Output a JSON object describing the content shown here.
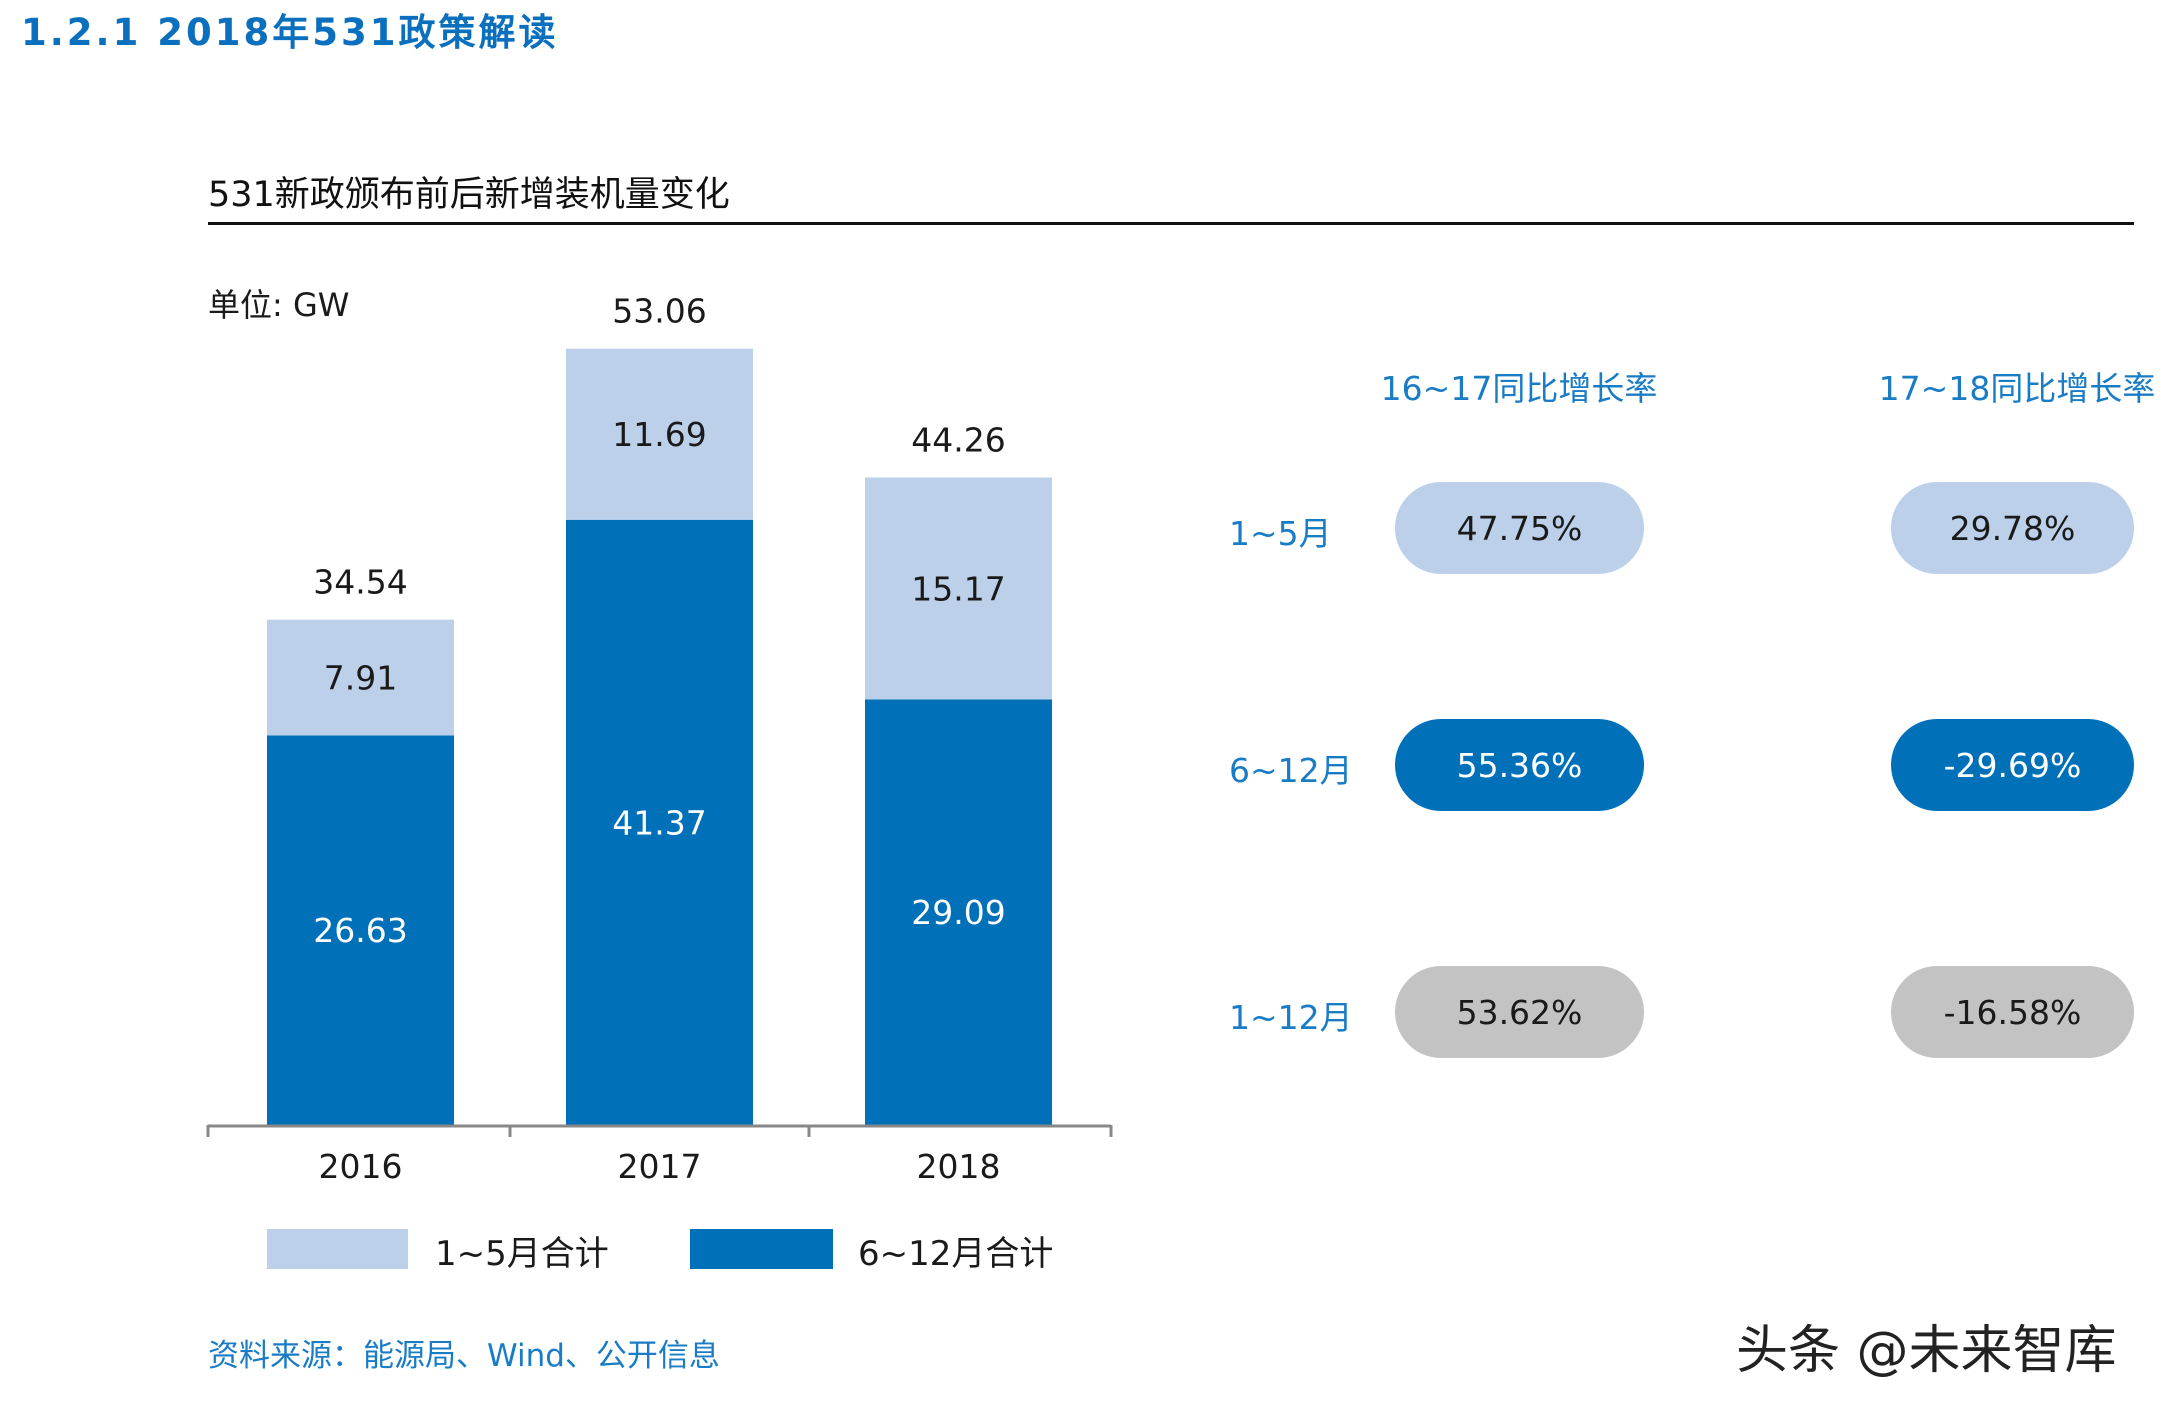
{
  "section_title": "1.2.1 2018年531政策解读",
  "chart_data": {
    "type": "bar",
    "stacked": true,
    "title": "531新政颁布前后新增装机量变化",
    "unit_label": "单位: GW",
    "categories": [
      "2016",
      "2017",
      "2018"
    ],
    "series": [
      {
        "name": "6~12月合计",
        "values": [
          26.63,
          41.37,
          29.09
        ],
        "color": "#0070b9"
      },
      {
        "name": "1~5月合计",
        "values": [
          7.91,
          11.69,
          15.17
        ],
        "color": "#bcd0ea"
      }
    ],
    "totals": [
      34.54,
      53.06,
      44.26
    ],
    "legend_position": "bottom",
    "grid": false
  },
  "growth_table": {
    "columns": [
      "16~17同比增长率",
      "17~18同比增长率"
    ],
    "rows": [
      {
        "label": "1~5月",
        "values": [
          "47.75%",
          "29.78%"
        ],
        "color": "#bcd0ea",
        "text_color": "#1a1a1a"
      },
      {
        "label": "6~12月",
        "values": [
          "55.36%",
          "-29.69%"
        ],
        "color": "#0070b9",
        "text_color": "#ffffff"
      },
      {
        "label": "1~12月",
        "values": [
          "53.62%",
          "-16.58%"
        ],
        "color": "#c3c3c3",
        "text_color": "#1a1a1a"
      }
    ]
  },
  "source": "资料来源：能源局、Wind、公开信息",
  "watermark": "头条 @未来智库"
}
